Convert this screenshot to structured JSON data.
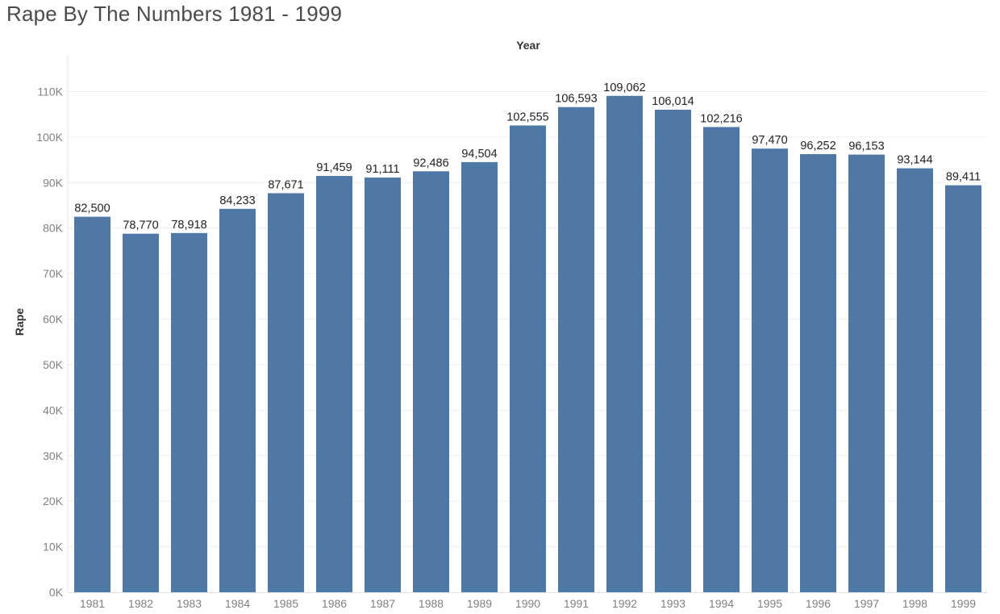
{
  "page": {
    "title": "Rape By The Numbers 1981 - 1999"
  },
  "chart_data": {
    "type": "bar",
    "title": "Rape By The Numbers 1981 - 1999",
    "xlabel": "Year",
    "ylabel": "Rape",
    "x_axis_position": "top",
    "categories": [
      "1981",
      "1982",
      "1983",
      "1984",
      "1985",
      "1986",
      "1987",
      "1988",
      "1989",
      "1990",
      "1991",
      "1992",
      "1993",
      "1994",
      "1995",
      "1996",
      "1997",
      "1998",
      "1999"
    ],
    "values": [
      82500,
      78770,
      78918,
      84233,
      87671,
      91459,
      91111,
      92486,
      94504,
      102555,
      106593,
      109062,
      106014,
      102216,
      97470,
      96252,
      96153,
      93144,
      89411
    ],
    "data_labels": [
      "82,500",
      "78,770",
      "78,918",
      "84,233",
      "87,671",
      "91,459",
      "91,111",
      "92,486",
      "94,504",
      "102,555",
      "106,593",
      "109,062",
      "106,014",
      "102,216",
      "97,470",
      "96,252",
      "96,153",
      "93,144",
      "89,411"
    ],
    "ylim": [
      0,
      110000
    ],
    "yticks": [
      0,
      10000,
      20000,
      30000,
      40000,
      50000,
      60000,
      70000,
      80000,
      90000,
      100000,
      110000
    ],
    "ytick_labels": [
      "0K",
      "10K",
      "20K",
      "30K",
      "40K",
      "50K",
      "60K",
      "70K",
      "80K",
      "90K",
      "100K",
      "110K"
    ],
    "grid": true,
    "bar_color": "#4e79a7",
    "grid_color": "#efefef"
  }
}
